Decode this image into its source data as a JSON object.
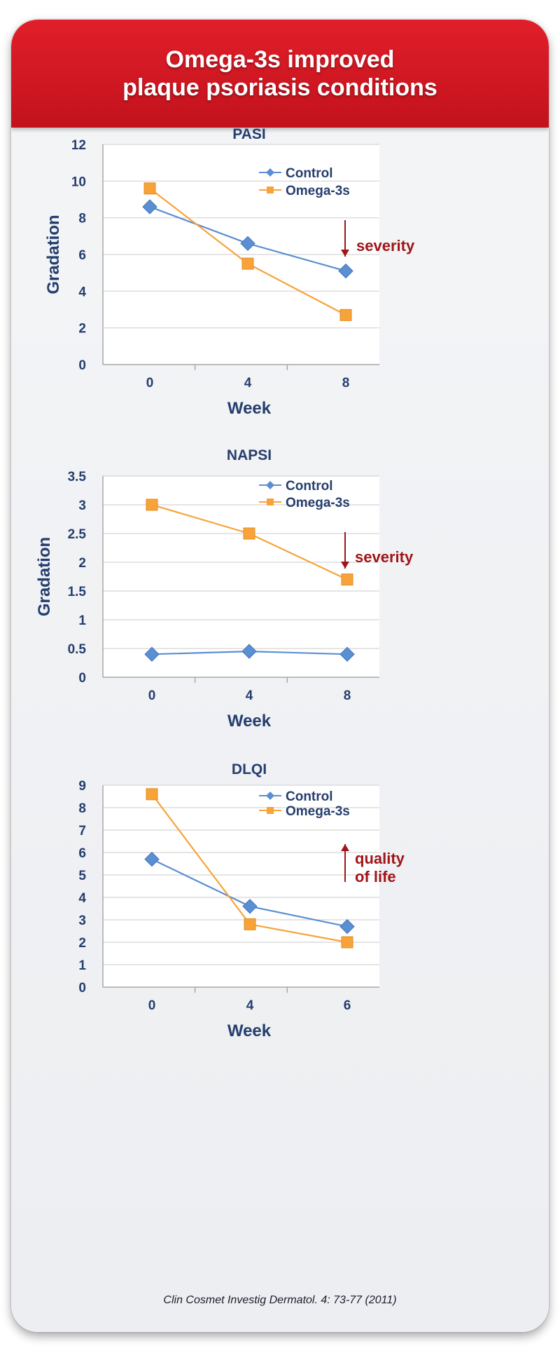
{
  "header": {
    "title_line1": "Omega-3s improved",
    "title_line2": "plaque psoriasis conditions"
  },
  "colors": {
    "banner": "#d5161f",
    "control": "#5b8fd2",
    "omega": "#f7a33a",
    "text": "#253e6e",
    "annotation": "#a01518"
  },
  "chart_data": [
    {
      "type": "line",
      "title": "PASI",
      "xlabel": "Week",
      "ylabel": "Gradation",
      "categories": [
        "0",
        "4",
        "8"
      ],
      "ylim": [
        0,
        12
      ],
      "yticks": [
        "0",
        "2",
        "4",
        "6",
        "8",
        "10",
        "12"
      ],
      "series": [
        {
          "name": "Control",
          "marker": "diamond",
          "values": [
            8.6,
            6.6,
            5.1
          ]
        },
        {
          "name": "Omega-3s",
          "marker": "square",
          "values": [
            9.6,
            5.5,
            2.7
          ]
        }
      ],
      "annotation": {
        "direction": "down",
        "lines": [
          "severity"
        ]
      },
      "legend": "top-right",
      "grid": true
    },
    {
      "type": "line",
      "title": "NAPSI",
      "xlabel": "Week",
      "ylabel": "Gradation",
      "categories": [
        "0",
        "4",
        "8"
      ],
      "ylim": [
        0,
        3.5
      ],
      "yticks": [
        "0",
        "0.5",
        "1",
        "1.5",
        "2",
        "2.5",
        "3",
        "3.5"
      ],
      "series": [
        {
          "name": "Control",
          "marker": "diamond",
          "values": [
            0.4,
            0.45,
            0.4
          ]
        },
        {
          "name": "Omega-3s",
          "marker": "square",
          "values": [
            3.0,
            2.5,
            1.7
          ]
        }
      ],
      "annotation": {
        "direction": "down",
        "lines": [
          "severity"
        ]
      },
      "legend": "top-right",
      "grid": true
    },
    {
      "type": "line",
      "title": "DLQI",
      "xlabel": "Week",
      "ylabel": "",
      "categories": [
        "0",
        "4",
        "6"
      ],
      "ylim": [
        0,
        9
      ],
      "yticks": [
        "0",
        "1",
        "2",
        "3",
        "4",
        "5",
        "6",
        "7",
        "8",
        "9"
      ],
      "series": [
        {
          "name": "Control",
          "marker": "diamond",
          "values": [
            5.7,
            3.6,
            2.7
          ]
        },
        {
          "name": "Omega-3s",
          "marker": "square",
          "values": [
            8.6,
            2.8,
            2.0
          ]
        }
      ],
      "annotation": {
        "direction": "up",
        "lines": [
          "quality",
          "of life"
        ]
      },
      "legend": "top-right",
      "grid": true
    }
  ],
  "citation": "Clin Cosmet Investig Dermatol. 4: 73-77 (2011)"
}
